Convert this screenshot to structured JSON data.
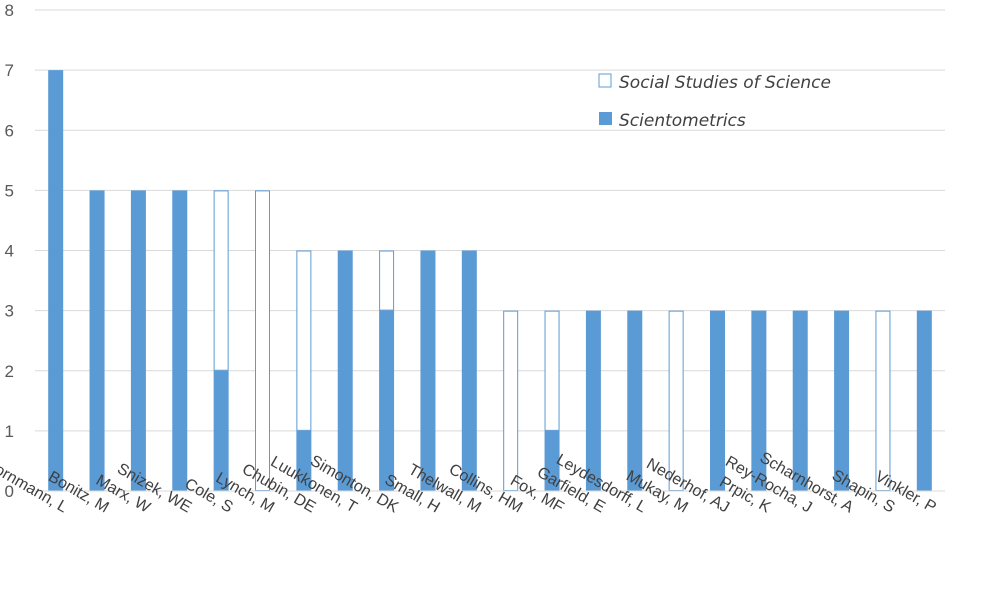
{
  "chart_data": {
    "type": "bar",
    "stacked": true,
    "title": "",
    "xlabel": "",
    "ylabel": "",
    "ylim": [
      0,
      8
    ],
    "yticks": [
      0,
      1,
      2,
      3,
      4,
      5,
      6,
      7,
      8
    ],
    "grid": true,
    "legend_position": "top-right",
    "categories": [
      "Bornmann, L",
      "Bonitz, M",
      "Marx, W",
      "Snizek, WE",
      "Cole, S",
      "Lynch, M",
      "Chubin, DE",
      "Luukkonen, T",
      "Simonton, DK",
      "Small, H",
      "Thelwall, M",
      "Collins, HM",
      "Fox, MF",
      "Garfield, E",
      "Leydesdorff, L",
      "Mukay, M",
      "Nederhof, AJ",
      "Prpic, K",
      "Rey-Rocha, J",
      "Scharnhorst, A",
      "Shapin, S",
      "Vinkler, P"
    ],
    "series": [
      {
        "name": "Scientometrics",
        "color": "#5b9bd5",
        "style": "filled",
        "values": [
          7,
          5,
          5,
          5,
          2,
          0,
          1,
          4,
          3,
          4,
          4,
          0,
          1,
          3,
          3,
          0,
          3,
          3,
          3,
          3,
          0,
          3
        ]
      },
      {
        "name": "Social Studies of Science",
        "color": "#5b9bd5",
        "style": "outline",
        "values": [
          0,
          0,
          0,
          0,
          3,
          5,
          3,
          0,
          1,
          0,
          0,
          3,
          2,
          0,
          0,
          3,
          0,
          0,
          0,
          0,
          3,
          0
        ]
      }
    ],
    "legend": [
      "Social Studies of Science",
      "Scientometrics"
    ]
  }
}
